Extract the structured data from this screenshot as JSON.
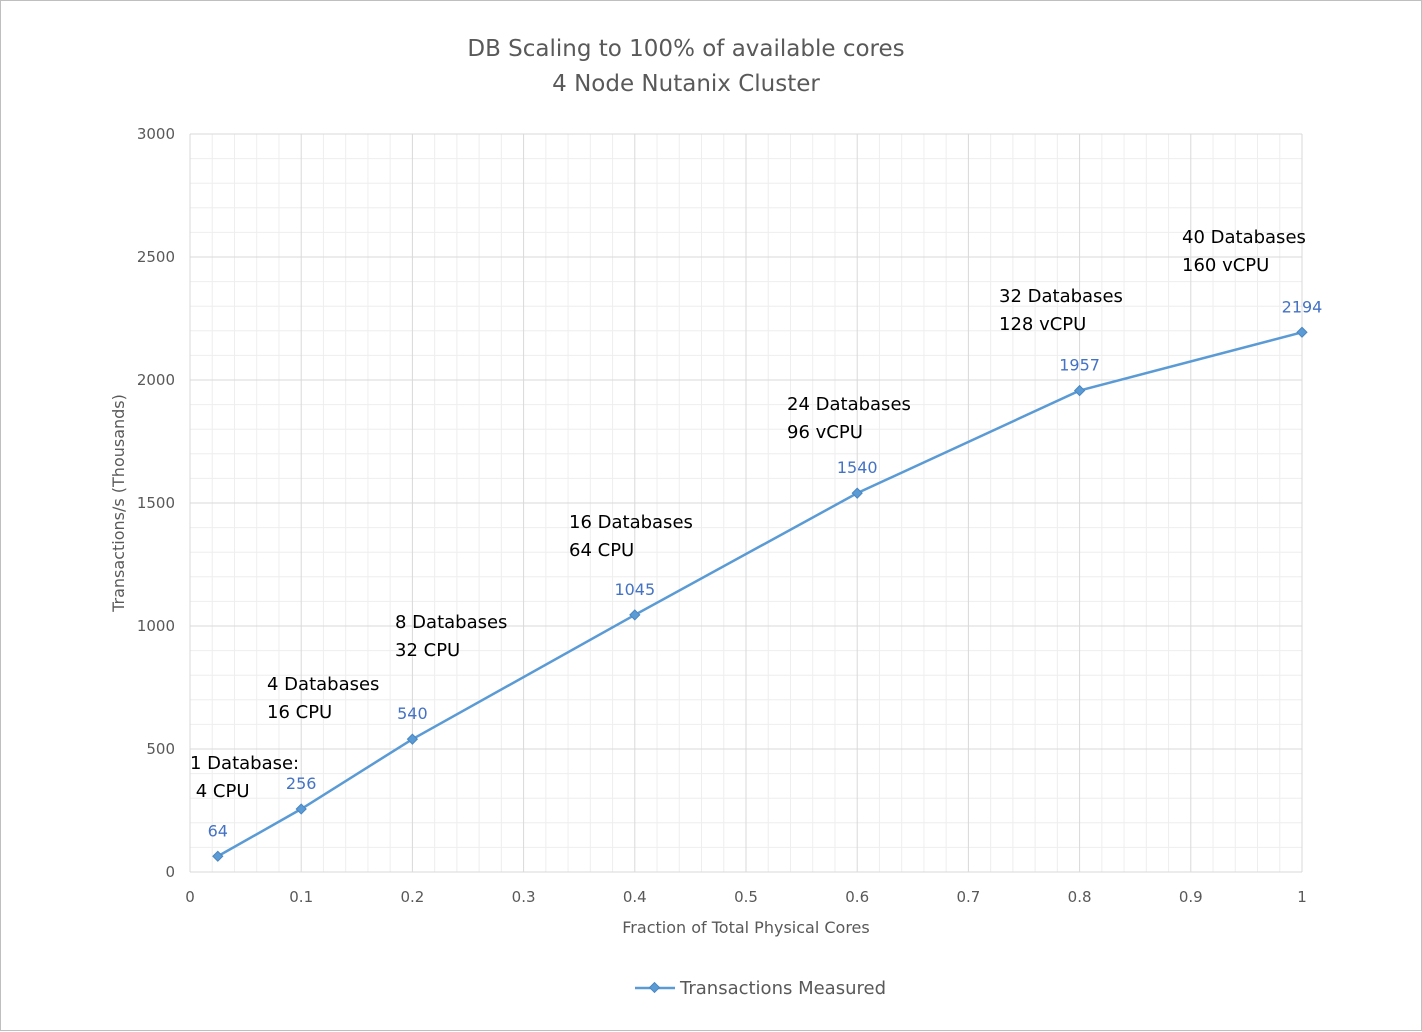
{
  "chart_data": {
    "type": "line",
    "title_lines": [
      "DB Scaling to 100% of available cores",
      "4 Node Nutanix Cluster"
    ],
    "xlabel": "Fraction of Total Physical Cores",
    "ylabel": "Transactions/s (Thousands)",
    "xlim": [
      0,
      1
    ],
    "ylim": [
      0,
      3000
    ],
    "x_ticks": [
      "0",
      "0.1",
      "0.2",
      "0.3",
      "0.4",
      "0.5",
      "0.6",
      "0.7",
      "0.8",
      "0.9",
      "1"
    ],
    "y_ticks": [
      "0",
      "500",
      "1000",
      "1500",
      "2000",
      "2500",
      "3000"
    ],
    "grid": true,
    "legend_position": "bottom",
    "series": [
      {
        "name": "Transactions Measured",
        "color": "#5b9bd5",
        "x": [
          0.025,
          0.1,
          0.2,
          0.4,
          0.6,
          0.8,
          1.0
        ],
        "values": [
          64,
          256,
          540,
          1045,
          1540,
          1957,
          2194
        ],
        "labels": [
          "64",
          "256",
          "540",
          "1045",
          "1540",
          "1957",
          "2194"
        ]
      }
    ],
    "annotations": [
      {
        "lines": [
          "1 Database:",
          " 4 CPU"
        ]
      },
      {
        "lines": [
          "4 Databases",
          "16 CPU"
        ]
      },
      {
        "lines": [
          "8 Databases",
          "32 CPU"
        ]
      },
      {
        "lines": [
          "16 Databases",
          "64 CPU"
        ]
      },
      {
        "lines": [
          "24 Databases",
          "96 vCPU"
        ]
      },
      {
        "lines": [
          "32 Databases",
          "128 vCPU"
        ]
      },
      {
        "lines": [
          "40 Databases",
          "160 vCPU"
        ]
      }
    ]
  }
}
